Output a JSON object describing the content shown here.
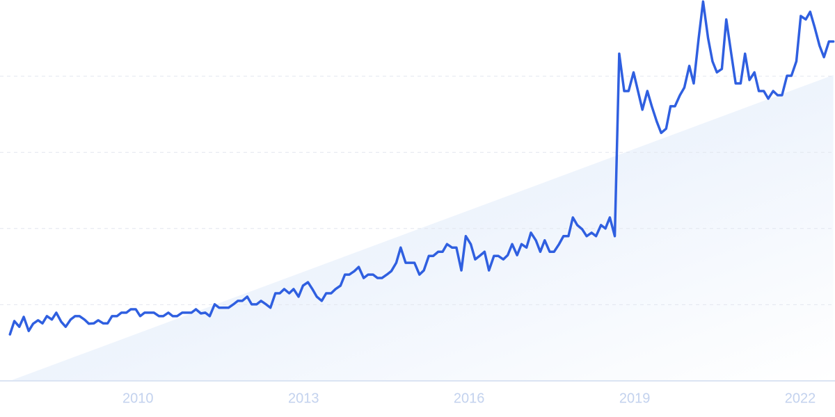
{
  "chart_data": {
    "type": "line",
    "color": "#2f5fe0",
    "grid": true,
    "xlim": [
      2007.5,
      2022.63
    ],
    "xticks": [
      2010,
      2013,
      2016,
      2019,
      2022
    ],
    "ylim": [
      0,
      100
    ],
    "yticks": [
      0,
      20,
      40,
      60,
      80
    ],
    "trend": {
      "x": [
        2007.68,
        2022.6
      ],
      "values": [
        0,
        80.3
      ],
      "color": "#dce8fa"
    },
    "x": [
      2007.68,
      2007.76,
      2007.85,
      2007.93,
      2008.02,
      2008.1,
      2008.19,
      2008.27,
      2008.35,
      2008.44,
      2008.52,
      2008.61,
      2008.69,
      2008.78,
      2008.86,
      2008.94,
      2009.03,
      2009.11,
      2009.2,
      2009.28,
      2009.37,
      2009.45,
      2009.53,
      2009.62,
      2009.7,
      2009.79,
      2009.87,
      2009.96,
      2010.04,
      2010.12,
      2010.21,
      2010.29,
      2010.38,
      2010.46,
      2010.55,
      2010.63,
      2010.71,
      2010.8,
      2010.88,
      2010.97,
      2011.05,
      2011.14,
      2011.22,
      2011.3,
      2011.39,
      2011.47,
      2011.56,
      2011.64,
      2011.73,
      2011.81,
      2011.89,
      2011.98,
      2012.06,
      2012.15,
      2012.23,
      2012.32,
      2012.4,
      2012.49,
      2012.57,
      2012.65,
      2012.74,
      2012.82,
      2012.91,
      2012.99,
      2013.08,
      2013.16,
      2013.24,
      2013.33,
      2013.41,
      2013.5,
      2013.58,
      2013.67,
      2013.75,
      2013.83,
      2013.92,
      2014.0,
      2014.09,
      2014.17,
      2014.26,
      2014.34,
      2014.42,
      2014.51,
      2014.59,
      2014.68,
      2014.76,
      2014.85,
      2014.93,
      2015.01,
      2015.1,
      2015.18,
      2015.27,
      2015.35,
      2015.44,
      2015.52,
      2015.6,
      2015.69,
      2015.77,
      2015.86,
      2015.94,
      2016.03,
      2016.11,
      2016.19,
      2016.28,
      2016.36,
      2016.45,
      2016.53,
      2016.62,
      2016.7,
      2016.78,
      2016.87,
      2016.95,
      2017.04,
      2017.12,
      2017.21,
      2017.29,
      2017.37,
      2017.46,
      2017.54,
      2017.63,
      2017.71,
      2017.8,
      2017.88,
      2017.96,
      2018.05,
      2018.13,
      2018.22,
      2018.3,
      2018.39,
      2018.47,
      2018.55,
      2018.64,
      2018.72,
      2018.81,
      2018.89,
      2018.98,
      2019.06,
      2019.14,
      2019.23,
      2019.31,
      2019.4,
      2019.48,
      2019.57,
      2019.65,
      2019.73,
      2019.82,
      2019.9,
      2019.99,
      2020.07,
      2020.16,
      2020.24,
      2020.33,
      2020.41,
      2020.49,
      2020.58,
      2020.66,
      2020.75,
      2020.83,
      2020.92,
      2021.0,
      2021.08,
      2021.17,
      2021.25,
      2021.34,
      2021.42,
      2021.51,
      2021.59,
      2021.67,
      2021.76,
      2021.84,
      2021.93,
      2022.01,
      2022.1,
      2022.18,
      2022.26,
      2022.35,
      2022.43,
      2022.52,
      2022.6
    ],
    "values": [
      12.2,
      15.7,
      14.2,
      16.8,
      13.1,
      15.0,
      15.9,
      15.1,
      17.0,
      16.1,
      17.9,
      15.5,
      14.2,
      16.1,
      17.0,
      17.0,
      16.1,
      15.0,
      15.1,
      15.9,
      15.1,
      15.1,
      17.0,
      17.0,
      17.9,
      17.9,
      18.8,
      18.8,
      17.0,
      17.9,
      17.9,
      17.9,
      17.0,
      17.0,
      17.9,
      17.0,
      17.0,
      17.9,
      17.9,
      17.9,
      18.8,
      17.7,
      17.9,
      17.0,
      20.1,
      19.2,
      19.2,
      19.2,
      20.1,
      21.0,
      21.0,
      22.1,
      20.1,
      20.1,
      21.0,
      20.1,
      19.2,
      23.0,
      23.0,
      24.1,
      23.0,
      24.1,
      22.1,
      25.0,
      25.9,
      24.1,
      22.1,
      21.0,
      23.0,
      23.0,
      24.1,
      25.0,
      27.9,
      27.9,
      28.8,
      29.9,
      27.0,
      27.9,
      27.9,
      27.0,
      27.0,
      27.9,
      28.8,
      31.0,
      35.0,
      31.0,
      31.0,
      31.0,
      27.9,
      29.0,
      32.8,
      32.8,
      33.9,
      33.9,
      35.9,
      35.0,
      35.0,
      29.0,
      38.0,
      35.9,
      31.9,
      32.8,
      33.9,
      29.0,
      32.8,
      32.8,
      31.9,
      33.0,
      35.9,
      33.0,
      35.9,
      35.0,
      38.9,
      36.9,
      33.9,
      36.9,
      33.9,
      33.9,
      35.9,
      38.0,
      38.0,
      42.9,
      40.9,
      39.8,
      38.0,
      38.9,
      38.0,
      40.9,
      40.0,
      42.9,
      38.0,
      85.9,
      76.1,
      76.1,
      81.0,
      76.1,
      71.2,
      76.1,
      72.1,
      68.1,
      65.1,
      66.2,
      72.1,
      72.1,
      75.0,
      77.0,
      82.7,
      78.1,
      90.0,
      99.6,
      90.0,
      83.9,
      81.0,
      81.9,
      94.9,
      85.9,
      78.1,
      78.1,
      85.9,
      79.0,
      81.0,
      76.1,
      76.1,
      74.1,
      76.1,
      75.0,
      75.0,
      80.1,
      80.1,
      83.9,
      95.8,
      94.9,
      96.9,
      92.9,
      88.0,
      85.0,
      89.1,
      89.1
    ]
  }
}
